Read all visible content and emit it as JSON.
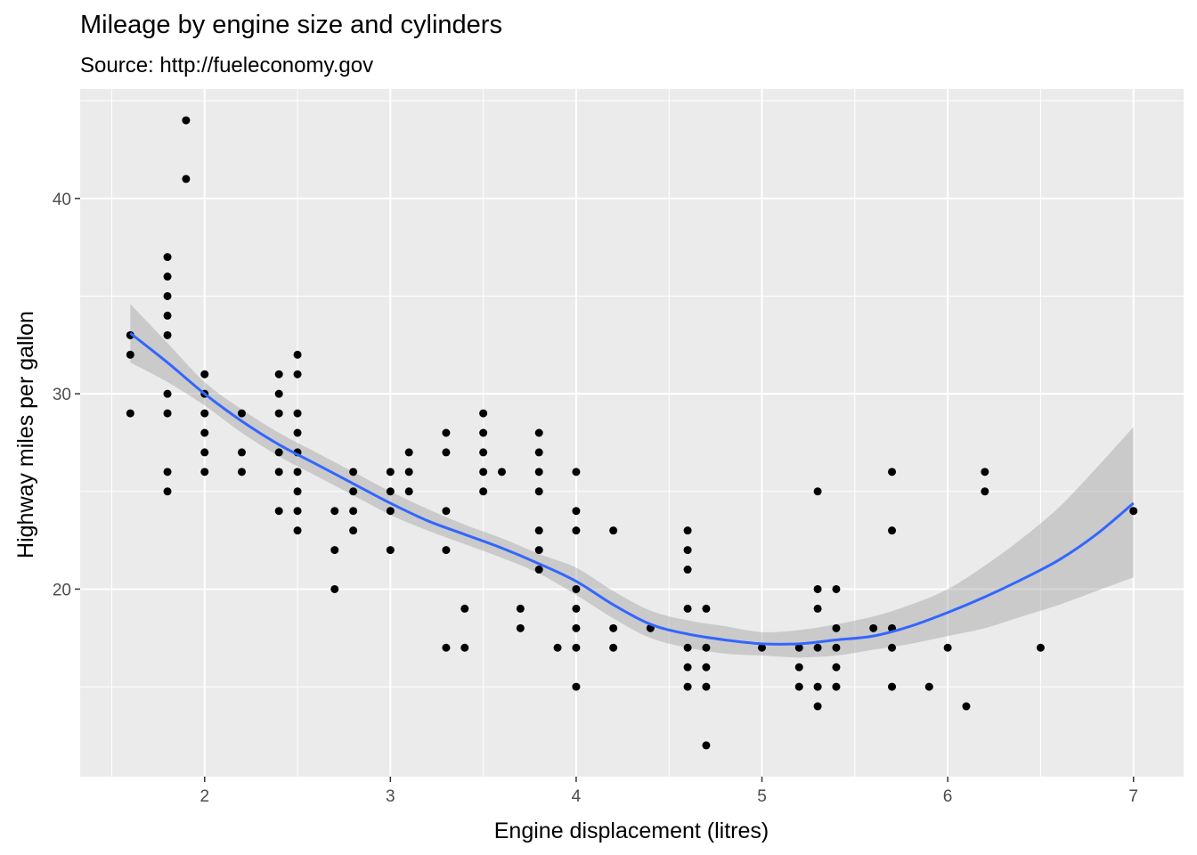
{
  "chart_data": {
    "type": "scatter",
    "title": "Mileage by engine size and cylinders",
    "subtitle": "Source: http://fueleconomy.gov",
    "xlabel": "Engine displacement (litres)",
    "ylabel": "Highway miles per gallon",
    "xlim": [
      1.33,
      7.27
    ],
    "ylim": [
      10.4,
      45.6
    ],
    "x_ticks": [
      2,
      3,
      4,
      5,
      6,
      7
    ],
    "y_ticks": [
      20,
      30,
      40
    ],
    "grid": true,
    "points": [
      [
        1.6,
        33
      ],
      [
        1.6,
        32
      ],
      [
        1.6,
        29
      ],
      [
        1.8,
        37
      ],
      [
        1.8,
        36
      ],
      [
        1.8,
        35
      ],
      [
        1.8,
        34
      ],
      [
        1.8,
        33
      ],
      [
        1.8,
        30
      ],
      [
        1.8,
        29
      ],
      [
        1.8,
        26
      ],
      [
        1.8,
        25
      ],
      [
        1.9,
        44
      ],
      [
        1.9,
        41
      ],
      [
        2.0,
        31
      ],
      [
        2.0,
        30
      ],
      [
        2.0,
        29
      ],
      [
        2.0,
        28
      ],
      [
        2.0,
        27
      ],
      [
        2.0,
        26
      ],
      [
        2.2,
        29
      ],
      [
        2.2,
        27
      ],
      [
        2.2,
        26
      ],
      [
        2.4,
        31
      ],
      [
        2.4,
        30
      ],
      [
        2.4,
        29
      ],
      [
        2.4,
        27
      ],
      [
        2.4,
        26
      ],
      [
        2.4,
        24
      ],
      [
        2.5,
        32
      ],
      [
        2.5,
        31
      ],
      [
        2.5,
        29
      ],
      [
        2.5,
        28
      ],
      [
        2.5,
        27
      ],
      [
        2.5,
        26
      ],
      [
        2.5,
        25
      ],
      [
        2.5,
        24
      ],
      [
        2.5,
        23
      ],
      [
        2.7,
        24
      ],
      [
        2.7,
        22
      ],
      [
        2.7,
        20
      ],
      [
        2.8,
        26
      ],
      [
        2.8,
        25
      ],
      [
        2.8,
        24
      ],
      [
        2.8,
        23
      ],
      [
        3.0,
        26
      ],
      [
        3.0,
        25
      ],
      [
        3.0,
        24
      ],
      [
        3.0,
        22
      ],
      [
        3.1,
        27
      ],
      [
        3.1,
        26
      ],
      [
        3.1,
        25
      ],
      [
        3.3,
        28
      ],
      [
        3.3,
        27
      ],
      [
        3.3,
        24
      ],
      [
        3.3,
        22
      ],
      [
        3.3,
        17
      ],
      [
        3.4,
        19
      ],
      [
        3.4,
        17
      ],
      [
        3.5,
        29
      ],
      [
        3.5,
        28
      ],
      [
        3.5,
        27
      ],
      [
        3.5,
        26
      ],
      [
        3.5,
        25
      ],
      [
        3.6,
        26
      ],
      [
        3.7,
        19
      ],
      [
        3.7,
        18
      ],
      [
        3.8,
        28
      ],
      [
        3.8,
        27
      ],
      [
        3.8,
        26
      ],
      [
        3.8,
        25
      ],
      [
        3.8,
        23
      ],
      [
        3.8,
        22
      ],
      [
        3.8,
        21
      ],
      [
        3.9,
        17
      ],
      [
        4.0,
        26
      ],
      [
        4.0,
        24
      ],
      [
        4.0,
        23
      ],
      [
        4.0,
        20
      ],
      [
        4.0,
        19
      ],
      [
        4.0,
        18
      ],
      [
        4.0,
        17
      ],
      [
        4.0,
        15
      ],
      [
        4.2,
        23
      ],
      [
        4.2,
        18
      ],
      [
        4.2,
        17
      ],
      [
        4.4,
        18
      ],
      [
        4.6,
        23
      ],
      [
        4.6,
        22
      ],
      [
        4.6,
        21
      ],
      [
        4.6,
        19
      ],
      [
        4.6,
        17
      ],
      [
        4.6,
        16
      ],
      [
        4.6,
        15
      ],
      [
        4.7,
        19
      ],
      [
        4.7,
        17
      ],
      [
        4.7,
        16
      ],
      [
        4.7,
        15
      ],
      [
        4.7,
        12
      ],
      [
        5.0,
        17
      ],
      [
        5.2,
        17
      ],
      [
        5.2,
        16
      ],
      [
        5.2,
        15
      ],
      [
        5.3,
        25
      ],
      [
        5.3,
        20
      ],
      [
        5.3,
        19
      ],
      [
        5.3,
        17
      ],
      [
        5.3,
        15
      ],
      [
        5.3,
        14
      ],
      [
        5.4,
        20
      ],
      [
        5.4,
        18
      ],
      [
        5.4,
        17
      ],
      [
        5.4,
        16
      ],
      [
        5.4,
        15
      ],
      [
        5.6,
        18
      ],
      [
        5.7,
        26
      ],
      [
        5.7,
        23
      ],
      [
        5.7,
        18
      ],
      [
        5.7,
        17
      ],
      [
        5.7,
        15
      ],
      [
        5.9,
        15
      ],
      [
        6.0,
        17
      ],
      [
        6.1,
        14
      ],
      [
        6.2,
        26
      ],
      [
        6.2,
        25
      ],
      [
        6.5,
        17
      ],
      [
        7.0,
        24
      ]
    ],
    "smooth": {
      "method": "loess",
      "color": "#3366FF",
      "band_color": "#999999",
      "x": [
        1.6,
        1.8,
        2.0,
        2.2,
        2.4,
        2.6,
        2.8,
        3.0,
        3.2,
        3.4,
        3.6,
        3.8,
        4.0,
        4.2,
        4.4,
        4.6,
        4.8,
        5.0,
        5.2,
        5.4,
        5.6,
        5.8,
        6.0,
        6.2,
        6.4,
        6.6,
        6.8,
        7.0
      ],
      "fit": [
        33.1,
        31.6,
        30.0,
        28.6,
        27.4,
        26.4,
        25.4,
        24.4,
        23.5,
        22.8,
        22.1,
        21.3,
        20.4,
        19.2,
        18.2,
        17.7,
        17.4,
        17.2,
        17.2,
        17.4,
        17.6,
        18.1,
        18.8,
        19.6,
        20.5,
        21.5,
        22.8,
        24.4
      ],
      "lower": [
        31.6,
        30.6,
        29.4,
        28.0,
        26.8,
        25.8,
        24.8,
        23.8,
        23.0,
        22.3,
        21.6,
        20.8,
        19.7,
        18.5,
        17.5,
        17.0,
        16.7,
        16.6,
        16.5,
        16.6,
        16.9,
        17.2,
        17.6,
        18.0,
        18.6,
        19.2,
        19.9,
        20.6
      ],
      "upper": [
        34.6,
        32.6,
        30.6,
        29.2,
        28.0,
        27.0,
        26.0,
        25.0,
        24.1,
        23.3,
        22.6,
        21.8,
        21.1,
        19.9,
        18.9,
        18.4,
        18.1,
        17.8,
        17.9,
        18.2,
        18.6,
        19.2,
        20.0,
        21.2,
        22.6,
        24.2,
        26.2,
        28.3
      ]
    }
  }
}
